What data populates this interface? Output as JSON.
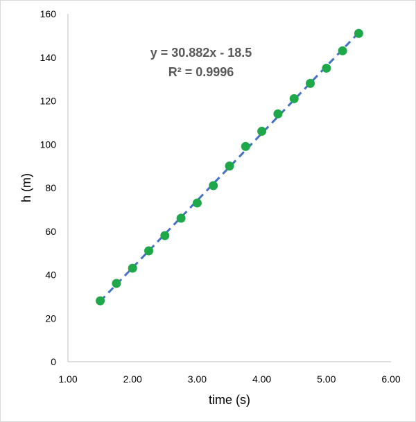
{
  "chart_data": {
    "type": "scatter",
    "xlabel": "time (s)",
    "ylabel": "h (m)",
    "xlim": [
      1.0,
      6.0
    ],
    "ylim": [
      0,
      160
    ],
    "x_ticks": [
      1.0,
      2.0,
      3.0,
      4.0,
      5.0,
      6.0
    ],
    "x_tick_labels": [
      "1.00",
      "2.00",
      "3.00",
      "4.00",
      "5.00",
      "6.00"
    ],
    "y_ticks": [
      0,
      20,
      40,
      60,
      80,
      100,
      120,
      140,
      160
    ],
    "y_tick_labels": [
      "0",
      "20",
      "40",
      "60",
      "80",
      "100",
      "120",
      "140",
      "160"
    ],
    "grid": false,
    "series": [
      {
        "x": [
          1.5,
          1.75,
          2.0,
          2.25,
          2.5,
          2.75,
          3.0,
          3.25,
          3.5,
          3.75,
          4.0,
          4.25,
          4.5,
          4.75,
          5.0,
          5.25,
          5.5
        ],
        "y": [
          28,
          36,
          43,
          51,
          58,
          66,
          73,
          81,
          90,
          99,
          106,
          114,
          121,
          128,
          135,
          143,
          151
        ],
        "marker_color": "#1fa84a"
      }
    ],
    "trendline": {
      "type": "linear",
      "slope": 30.882,
      "intercept": -18.5,
      "x_range": [
        1.5,
        5.5
      ],
      "color": "#4472c4",
      "style": "dashed"
    },
    "annotations": {
      "equation": "y = 30.882x - 18.5",
      "r_squared": "R² = 0.9996"
    }
  }
}
